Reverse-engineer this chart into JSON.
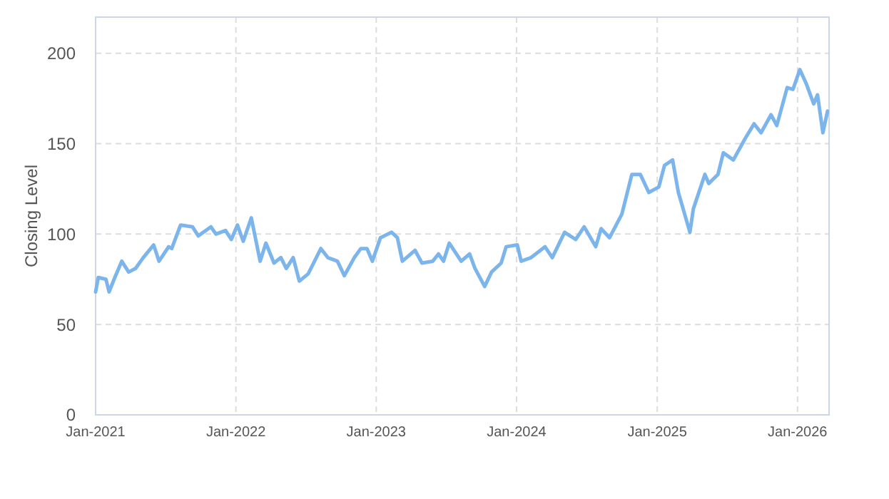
{
  "chart_data": {
    "type": "line",
    "ylabel": "Closing Level",
    "x": [
      "2021-01-01",
      "2021-01-08",
      "2021-01-28",
      "2021-02-05",
      "2021-02-20",
      "2021-03-10",
      "2021-03-28",
      "2021-04-15",
      "2021-05-05",
      "2021-06-01",
      "2021-06-15",
      "2021-07-10",
      "2021-07-18",
      "2021-08-10",
      "2021-09-10",
      "2021-09-25",
      "2021-10-28",
      "2021-11-10",
      "2021-12-05",
      "2021-12-20",
      "2022-01-05",
      "2022-01-20",
      "2022-02-10",
      "2022-03-05",
      "2022-03-20",
      "2022-04-10",
      "2022-04-28",
      "2022-05-12",
      "2022-05-30",
      "2022-06-15",
      "2022-07-08",
      "2022-08-10",
      "2022-08-28",
      "2022-09-22",
      "2022-10-10",
      "2022-11-05",
      "2022-11-22",
      "2022-12-08",
      "2022-12-22",
      "2023-01-12",
      "2023-02-10",
      "2023-02-25",
      "2023-03-10",
      "2023-04-12",
      "2023-04-30",
      "2023-05-28",
      "2023-06-12",
      "2023-06-25",
      "2023-07-10",
      "2023-08-10",
      "2023-09-01",
      "2023-09-15",
      "2023-10-10",
      "2023-10-28",
      "2023-11-22",
      "2023-12-05",
      "2024-01-03",
      "2024-01-13",
      "2024-02-08",
      "2024-03-15",
      "2024-04-03",
      "2024-05-05",
      "2024-06-03",
      "2024-06-25",
      "2024-07-25",
      "2024-08-08",
      "2024-08-30",
      "2024-10-01",
      "2024-10-27",
      "2024-11-18",
      "2024-12-10",
      "2025-01-05",
      "2025-01-20",
      "2025-02-10",
      "2025-02-25",
      "2025-03-12",
      "2025-03-27",
      "2025-04-05",
      "2025-05-05",
      "2025-05-15",
      "2025-06-08",
      "2025-06-22",
      "2025-07-18",
      "2025-08-18",
      "2025-09-10",
      "2025-09-28",
      "2025-10-24",
      "2025-11-08",
      "2025-12-05",
      "2025-12-20",
      "2026-01-07",
      "2026-01-24",
      "2026-02-12",
      "2026-02-22",
      "2026-03-08",
      "2026-03-20"
    ],
    "series": [
      {
        "color": "#7cb5ec",
        "values": [
          68,
          76,
          75,
          68,
          76,
          85,
          79,
          81,
          87,
          94,
          85,
          93,
          92,
          105,
          104,
          99,
          104,
          100,
          102,
          97,
          105,
          96,
          109,
          85,
          95,
          84,
          87,
          81,
          87,
          74,
          78,
          92,
          87,
          85,
          77,
          87,
          92,
          92,
          85,
          98,
          101,
          98,
          85,
          91,
          84,
          85,
          89,
          85,
          95,
          85,
          89,
          81,
          71,
          79,
          84,
          93,
          94,
          85,
          87,
          93,
          87,
          101,
          97,
          104,
          93,
          103,
          98,
          111,
          133,
          133,
          123,
          126,
          138,
          141,
          123,
          112,
          101,
          114,
          133,
          128,
          133,
          145,
          141,
          153,
          161,
          156,
          166,
          160,
          181,
          180,
          191,
          183,
          172,
          177,
          156,
          168
        ]
      }
    ],
    "xlim": [
      "2021-01-01",
      "2026-03-24"
    ],
    "xticks": [
      {
        "value": "2021-01",
        "label": "Jan-2021"
      },
      {
        "value": "2022-01",
        "label": "Jan-2022"
      },
      {
        "value": "2023-01",
        "label": "Jan-2023"
      },
      {
        "value": "2024-01",
        "label": "Jan-2024"
      },
      {
        "value": "2025-01",
        "label": "Jan-2025"
      },
      {
        "value": "2026-01",
        "label": "Jan-2026"
      }
    ],
    "ylim": [
      0,
      220
    ],
    "yticks": [
      0,
      50,
      100,
      150,
      200
    ],
    "grid": true,
    "marker": "none",
    "line_style": "solid"
  }
}
